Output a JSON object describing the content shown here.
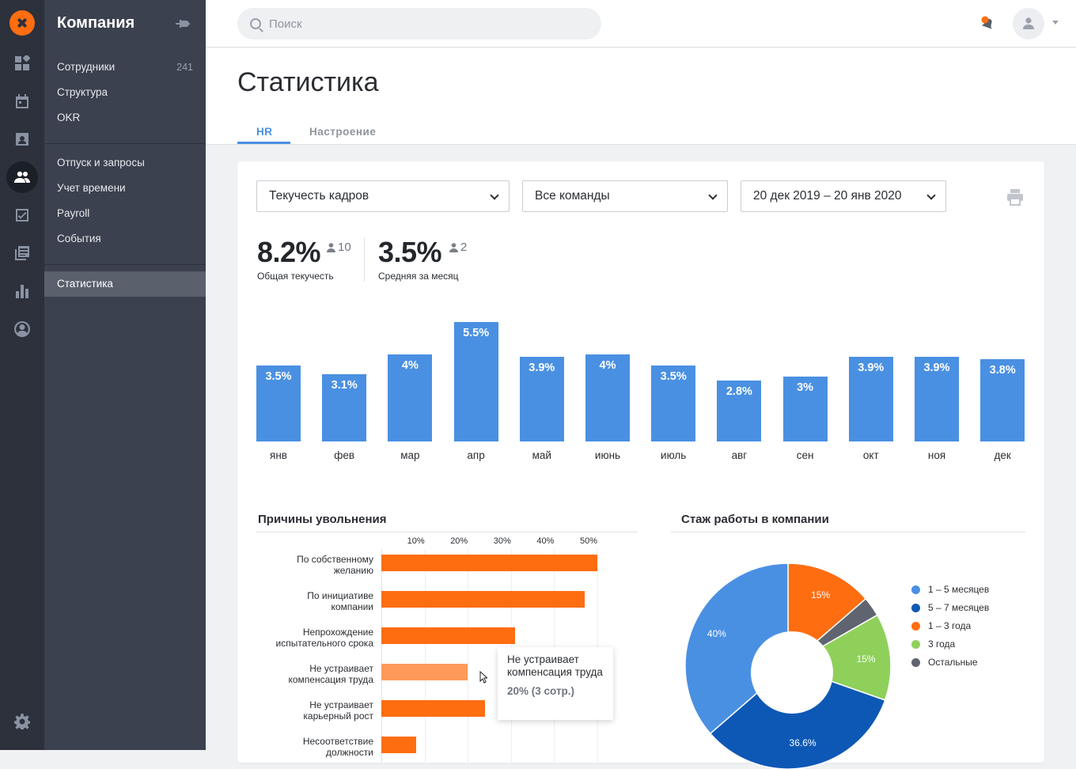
{
  "sidebar": {
    "title": "Компания",
    "items": [
      {
        "label": "Сотрудники",
        "count": "241"
      },
      {
        "label": "Структура"
      },
      {
        "label": "OKR"
      },
      {
        "label": "Отпуск и запросы"
      },
      {
        "label": "Учет времени"
      },
      {
        "label": "Payroll"
      },
      {
        "label": "События"
      },
      {
        "label": "Статистика"
      }
    ]
  },
  "search": {
    "placeholder": "Поиск"
  },
  "page": {
    "title": "Статистика"
  },
  "tabs": [
    {
      "label": "HR"
    },
    {
      "label": "Настроение"
    }
  ],
  "filters": {
    "metric": "Текучесть кадров",
    "team": "Все команды",
    "period": "20 дек 2019 – 20 янв 2020"
  },
  "kpis": [
    {
      "value": "8.2%",
      "people": "10",
      "label": "Общая текучесть"
    },
    {
      "value": "3.5%",
      "people": "2",
      "label": "Средняя за месяц"
    }
  ],
  "chart_data": [
    {
      "type": "bar",
      "categories": [
        "янв",
        "фев",
        "мар",
        "апр",
        "май",
        "июнь",
        "июль",
        "авг",
        "сен",
        "окт",
        "ноя",
        "дек"
      ],
      "values": [
        3.5,
        3.1,
        4,
        5.5,
        3.9,
        4,
        3.5,
        2.8,
        3,
        3.9,
        3.9,
        3.8
      ],
      "labels": [
        "3.5%",
        "3.1%",
        "4%",
        "5.5%",
        "3.9%",
        "4%",
        "3.5%",
        "2.8%",
        "3%",
        "3.9%",
        "3.9%",
        "3.8%"
      ]
    },
    {
      "type": "bar",
      "orientation": "horizontal",
      "title": "Причины увольнения",
      "ticks": [
        "10%",
        "20%",
        "30%",
        "40%",
        "50%"
      ],
      "categories": [
        [
          "По собственному",
          "желанию"
        ],
        [
          "По инициативе",
          "компании"
        ],
        [
          "Непрохождение",
          "испытательного срока"
        ],
        [
          "Не устраивает",
          "компенсация труда"
        ],
        [
          "Не устраивает",
          "карьерный рост"
        ],
        [
          "Несоответствие",
          "должности"
        ]
      ],
      "values": [
        50,
        47,
        31,
        20,
        24,
        8
      ],
      "xlim": [
        0,
        50
      ]
    },
    {
      "type": "pie",
      "title": "Стаж работы в компании",
      "slices": [
        {
          "name": "1 – 5 месяцев",
          "value": 40,
          "label": "40%",
          "color": "#4a90e2"
        },
        {
          "name": "5 – 7 месяцев",
          "value": 36.6,
          "label": "36.6%",
          "color": "#0e58b5"
        },
        {
          "name": "1 – 3 года",
          "value": 15,
          "label": "15%",
          "color": "#ff6d11"
        },
        {
          "name": "3 года",
          "value": 15,
          "label": "15%",
          "color": "#8fd05b"
        },
        {
          "name": "Остальные",
          "value": 3.4,
          "label": "",
          "color": "#5f6470"
        }
      ]
    }
  ],
  "tooltip": {
    "title": "Не устраивает компенсация труда",
    "value": "20% (3 сотр.)"
  }
}
